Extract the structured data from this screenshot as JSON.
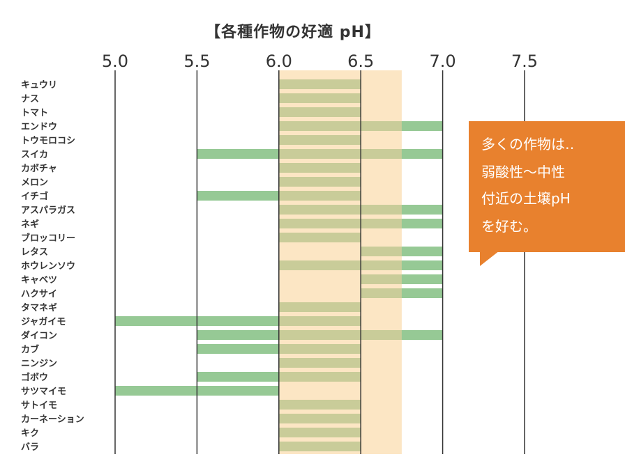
{
  "title": "【各種作物の好適 pH】",
  "callout": {
    "lines": [
      "多くの作物は‥",
      "弱酸性〜中性",
      "付近の土壌pH",
      "を好む。"
    ]
  },
  "colors": {
    "bar": "#96c995",
    "band": "#fce6c4",
    "overlap": "#c9cc99",
    "grid": "#333333",
    "callout": "#e8812e"
  },
  "chart_data": {
    "type": "bar",
    "orientation": "horizontal-range",
    "title": "【各種作物の好適 pH】",
    "x_ticks": [
      "5.0",
      "5.5",
      "6.0",
      "6.5",
      "7.0",
      "7.5"
    ],
    "xlim": [
      5.0,
      7.5
    ],
    "x_axis_position": "top",
    "highlight_band": [
      6.0,
      6.75
    ],
    "categories": [
      "キュウリ",
      "ナス",
      "トマト",
      "エンドウ",
      "トウモロコシ",
      "スイカ",
      "カボチャ",
      "メロン",
      "イチゴ",
      "アスパラガス",
      "ネギ",
      "ブロッコリー",
      "レタス",
      "ホウレンソウ",
      "キャベツ",
      "ハクサイ",
      "タマネギ",
      "ジャガイモ",
      "ダイコン",
      "カブ",
      "ニンジン",
      "ゴボウ",
      "サツマイモ",
      "サトイモ",
      "カーネーション",
      "キク",
      "バラ"
    ],
    "ranges": [
      [
        6.0,
        6.5
      ],
      [
        6.0,
        6.5
      ],
      [
        6.0,
        6.5
      ],
      [
        6.0,
        7.0
      ],
      [
        6.0,
        6.5
      ],
      [
        5.5,
        7.0
      ],
      [
        6.0,
        6.5
      ],
      [
        6.0,
        6.5
      ],
      [
        5.5,
        6.5
      ],
      [
        6.0,
        7.0
      ],
      [
        6.0,
        7.0
      ],
      [
        6.0,
        6.5
      ],
      [
        6.5,
        7.0
      ],
      [
        6.0,
        7.0
      ],
      [
        6.5,
        7.0
      ],
      [
        6.5,
        7.0
      ],
      [
        6.0,
        6.5
      ],
      [
        5.0,
        6.5
      ],
      [
        5.5,
        7.0
      ],
      [
        5.5,
        6.5
      ],
      [
        6.0,
        6.5
      ],
      [
        5.5,
        6.5
      ],
      [
        5.0,
        6.0
      ],
      [
        6.0,
        6.5
      ],
      [
        6.0,
        6.5
      ],
      [
        6.0,
        6.5
      ],
      [
        6.0,
        6.5
      ]
    ],
    "grid": true
  }
}
